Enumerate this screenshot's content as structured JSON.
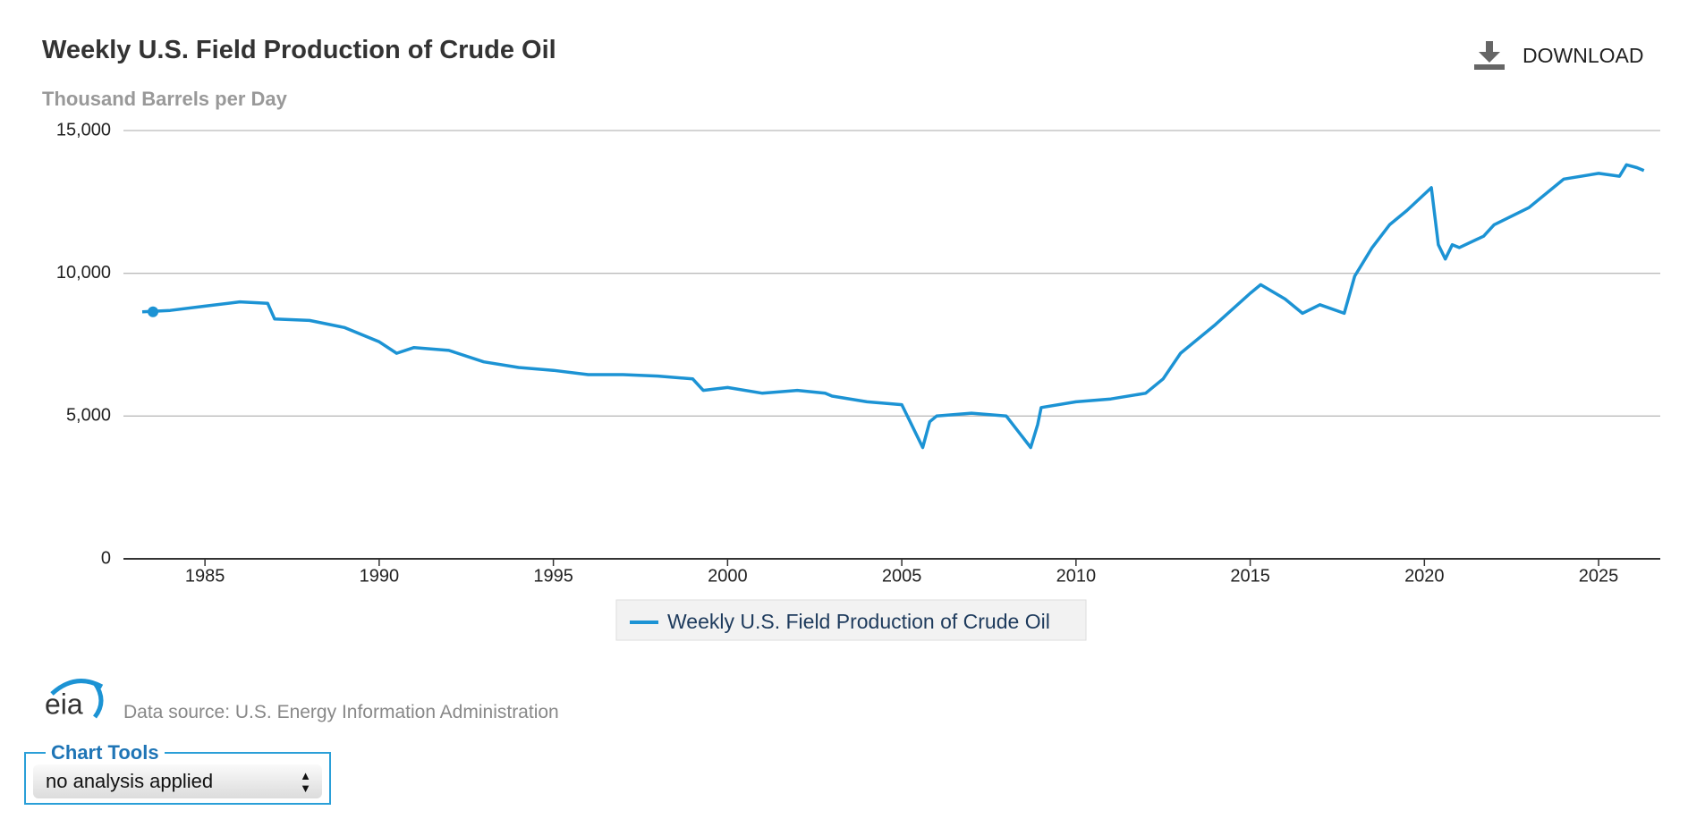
{
  "chart_data": {
    "type": "line",
    "title": "Weekly U.S. Field Production of Crude Oil",
    "subtitle": "Thousand Barrels per Day",
    "x": [
      1983.2,
      1984,
      1985,
      1986,
      1986.8,
      1987,
      1988,
      1989,
      1990,
      1990.5,
      1991,
      1992,
      1993,
      1994,
      1995,
      1996,
      1997,
      1998,
      1999,
      1999.3,
      2000,
      2001,
      2002,
      2002.8,
      2003,
      2004,
      2005,
      2005.6,
      2005.8,
      2006,
      2007,
      2008,
      2008.7,
      2008.9,
      2009,
      2010,
      2011,
      2012,
      2012.5,
      2013,
      2014,
      2015,
      2015.3,
      2016,
      2016.5,
      2017,
      2017.7,
      2018,
      2018.5,
      2019,
      2019.5,
      2020.2,
      2020.4,
      2020.6,
      2020.8,
      2021,
      2021.7,
      2022,
      2023,
      2023.9,
      2024,
      2025,
      2025.6,
      2025.8,
      2026.1,
      2026.3
    ],
    "series": [
      {
        "name": "Weekly U.S. Field Production of Crude Oil",
        "color": "#1c93d4",
        "values": [
          8650,
          8700,
          8850,
          9000,
          8950,
          8400,
          8350,
          8100,
          7600,
          7200,
          7400,
          7300,
          6900,
          6700,
          6600,
          6450,
          6450,
          6400,
          6300,
          5900,
          6000,
          5800,
          5900,
          5800,
          5700,
          5500,
          5400,
          3900,
          4800,
          5000,
          5100,
          5000,
          3900,
          4700,
          5300,
          5500,
          5600,
          5800,
          6300,
          7200,
          8200,
          9300,
          9600,
          9100,
          8600,
          8900,
          8600,
          9900,
          10900,
          11700,
          12200,
          13000,
          11000,
          10500,
          11000,
          10900,
          11300,
          11700,
          12300,
          13200,
          13300,
          13500,
          13400,
          13800,
          13700,
          13600
        ]
      }
    ],
    "xlim": [
      1982.66,
      2026.77
    ],
    "xticks": [
      1985,
      1990,
      1995,
      2000,
      2005,
      2010,
      2015,
      2020,
      2025
    ],
    "ylim": [
      0,
      15000
    ],
    "yticks": [
      0,
      {
        "value": 5000,
        "label": "5,000"
      },
      {
        "value": 10000,
        "label": "10,000"
      },
      {
        "value": 15000,
        "label": "15,000"
      }
    ],
    "grid": true
  },
  "download": "DOWNLOAD",
  "source": "Data source: U.S. Energy Information Administration",
  "logo": "eia",
  "chart_tools": {
    "title": "Chart Tools",
    "selected": "no analysis applied"
  }
}
